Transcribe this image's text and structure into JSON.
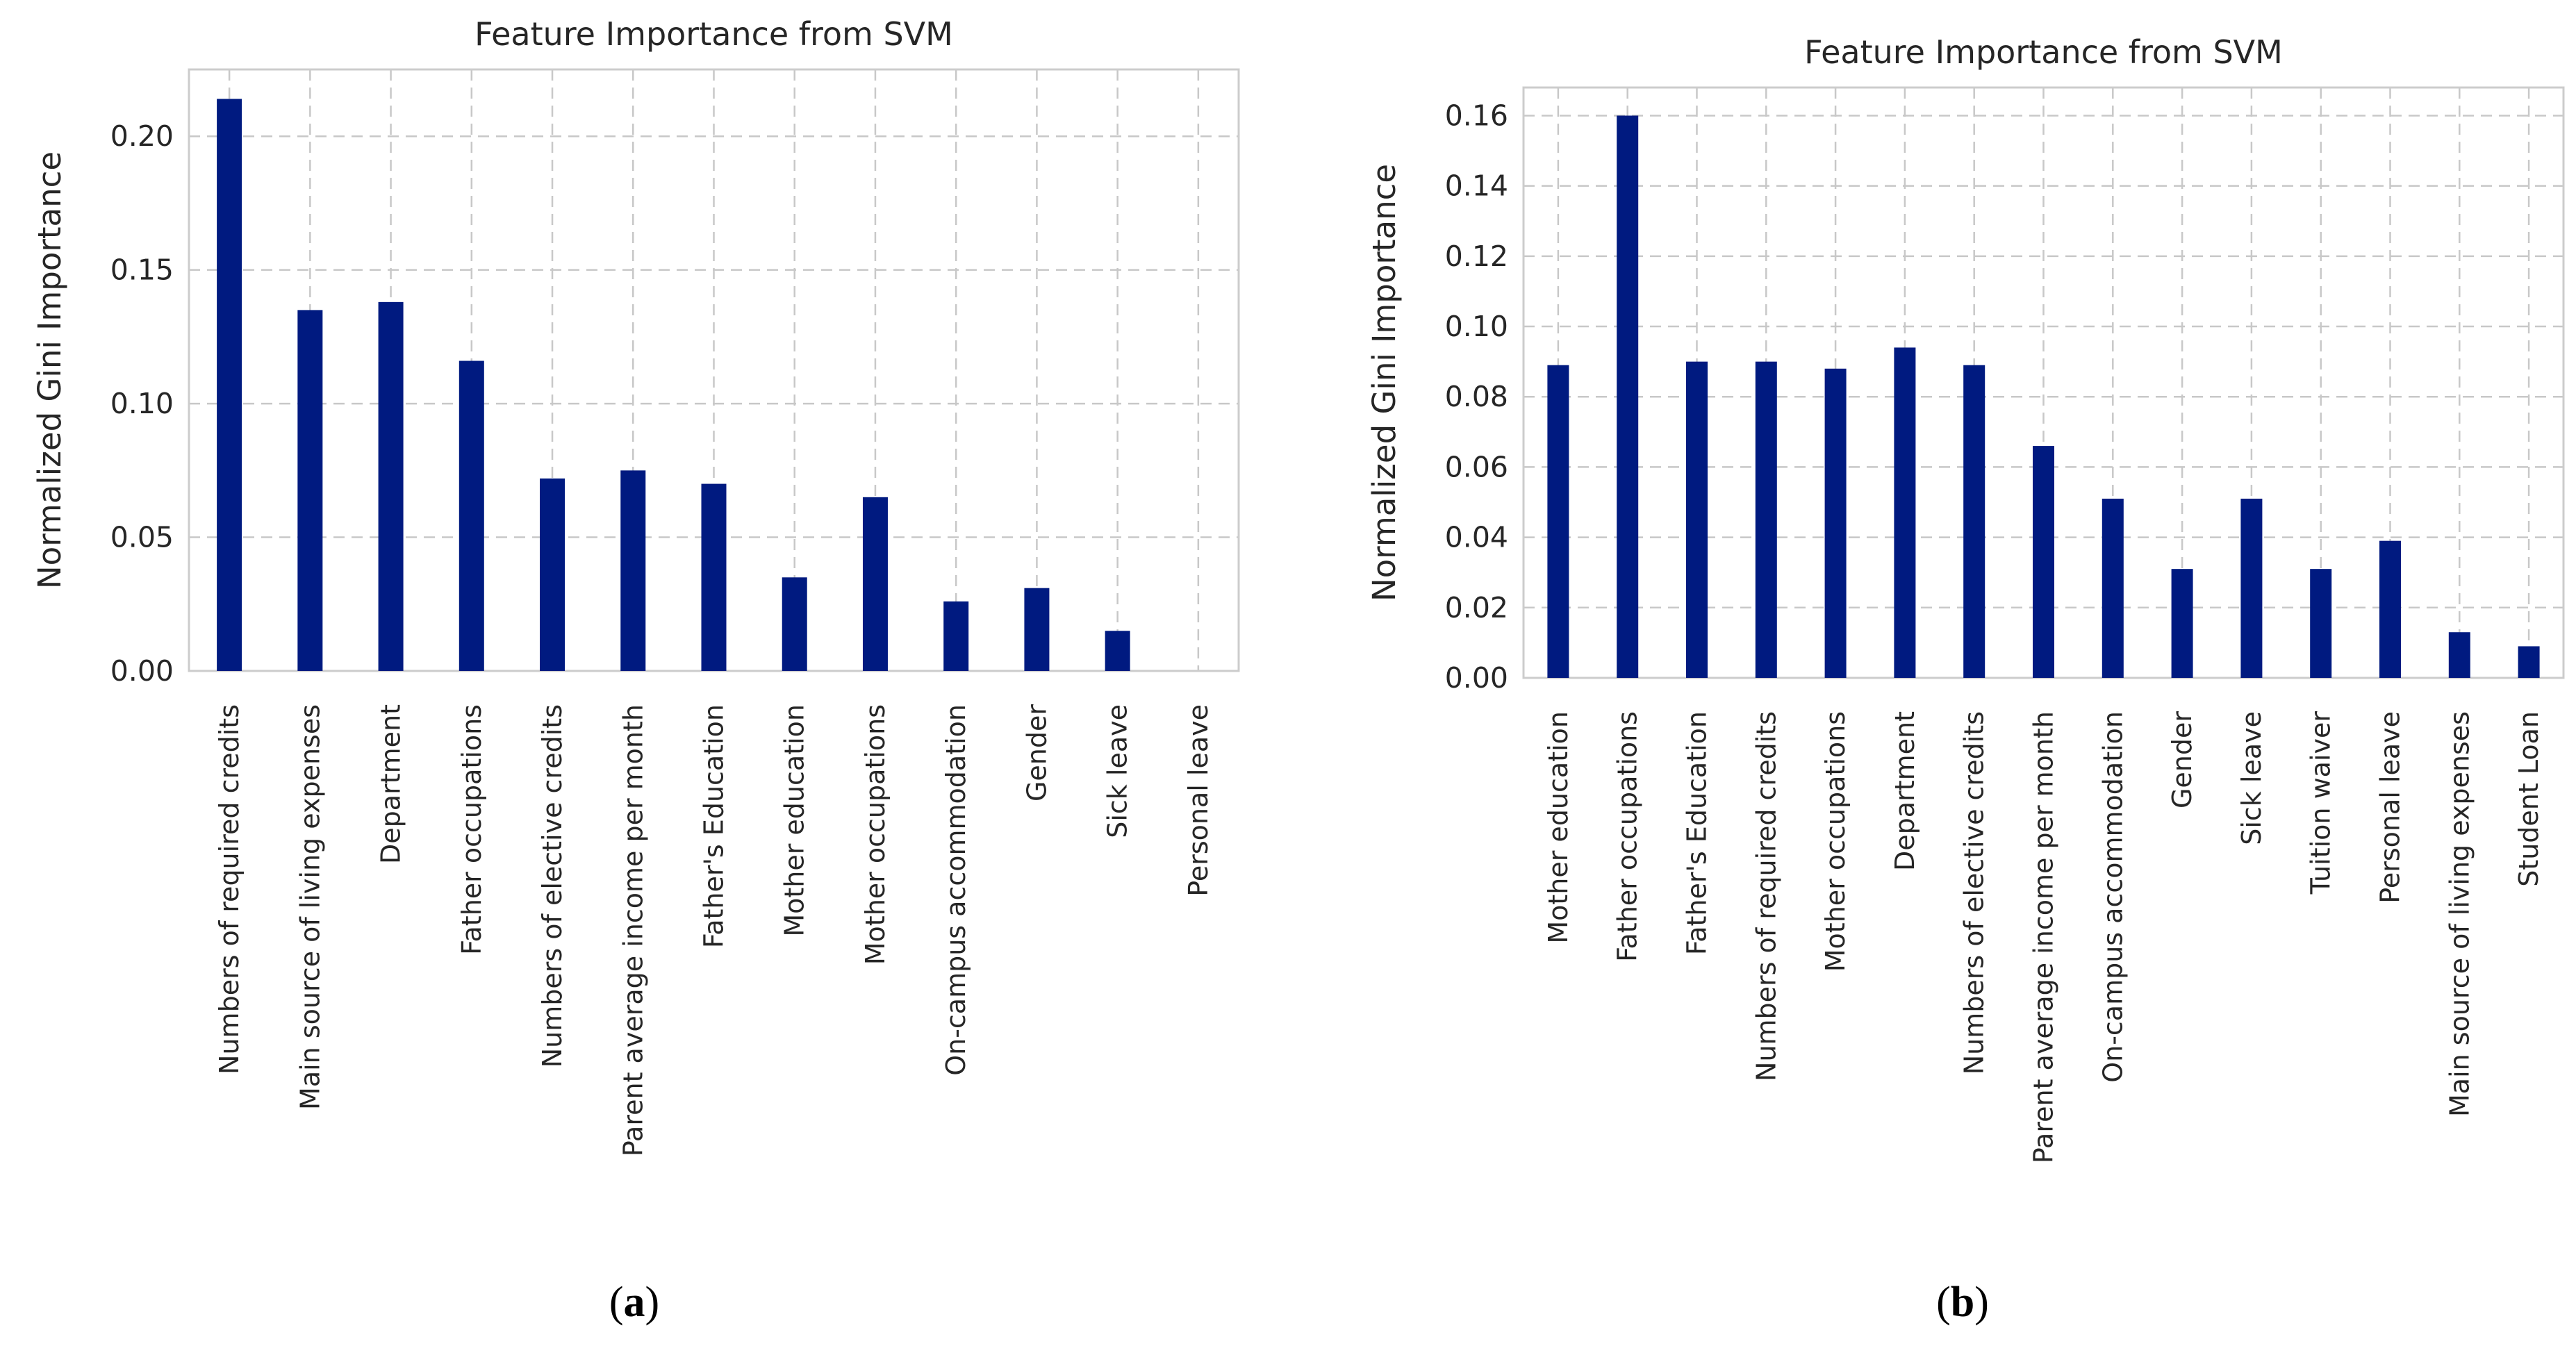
{
  "colors": {
    "bar": "#001a80",
    "grid": "#c8c8c8",
    "frame": "#cccccc",
    "text": "#262626"
  },
  "chart_data": [
    {
      "type": "bar",
      "panel": "a",
      "title": "Feature Importance from SVM",
      "xlabel": "",
      "ylabel": "Normalized Gini Importance",
      "ylim": [
        0,
        0.225
      ],
      "yticks": [
        0.0,
        0.05,
        0.1,
        0.15,
        0.2
      ],
      "ytick_labels": [
        "0.00",
        "0.05",
        "0.10",
        "0.15",
        "0.20"
      ],
      "categories": [
        "Numbers of required credits",
        "Main source of living expenses",
        "Department",
        "Father occupations",
        "Numbers of elective credits",
        "Parent average income per month",
        "Father's Education",
        "Mother education",
        "Mother occupations",
        "On-campus accommodation",
        "Gender",
        "Sick leave",
        "Personal leave"
      ],
      "values": [
        0.214,
        0.135,
        0.138,
        0.116,
        0.072,
        0.075,
        0.07,
        0.035,
        0.065,
        0.026,
        0.031,
        0.015,
        0.0
      ],
      "grid": true
    },
    {
      "type": "bar",
      "panel": "b",
      "title": "Feature Importance from SVM",
      "xlabel": "",
      "ylabel": "Normalized Gini Importance",
      "ylim": [
        0,
        0.168
      ],
      "yticks": [
        0.0,
        0.02,
        0.04,
        0.06,
        0.08,
        0.1,
        0.12,
        0.14,
        0.16
      ],
      "ytick_labels": [
        "0.00",
        "0.02",
        "0.04",
        "0.06",
        "0.08",
        "0.10",
        "0.12",
        "0.14",
        "0.16"
      ],
      "categories": [
        "Mother education",
        "Father occupations",
        "Father's Education",
        "Numbers of required credits",
        "Mother occupations",
        "Department",
        "Numbers of elective credits",
        "Parent average income per month",
        "On-campus accommodation",
        "Gender",
        "Sick leave",
        "Tuition waiver",
        "Personal leave",
        "Main source of living expenses",
        "Student Loan"
      ],
      "values": [
        0.089,
        0.16,
        0.09,
        0.09,
        0.088,
        0.094,
        0.089,
        0.066,
        0.051,
        0.031,
        0.051,
        0.031,
        0.039,
        0.013,
        0.009
      ],
      "grid": true
    }
  ],
  "captions": [
    {
      "open": "(",
      "letter": "a",
      "close": ")"
    },
    {
      "open": "(",
      "letter": "b",
      "close": ")"
    }
  ]
}
